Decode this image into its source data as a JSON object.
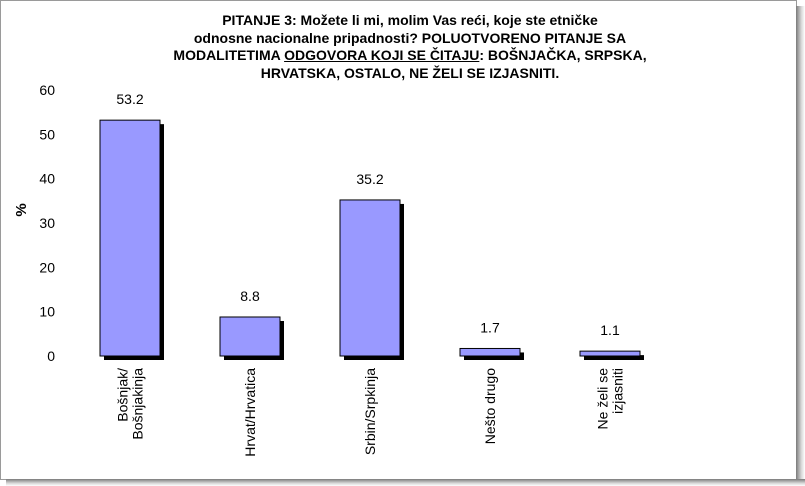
{
  "chart_data": {
    "type": "bar",
    "title_parts": [
      {
        "text": "PITANJE 3: Možete li mi, molim Vas reći, koje ste etničke",
        "u": false,
        "br": true
      },
      {
        "text": "odnosne nacionalne pripadnosti? POLUOTVORENO PITANJE SA",
        "u": false,
        "br": true
      },
      {
        "text": "MODALITETIMA ",
        "u": false,
        "br": false
      },
      {
        "text": "ODGOVORA KOJI SE ČITAJU",
        "u": true,
        "br": false
      },
      {
        "text": ": BOŠNJAČKA, SRPSKA,",
        "u": false,
        "br": true
      },
      {
        "text": "HRVATSKA, OSTALO, NE ŽELI SE IZJASNITI.",
        "u": false,
        "br": false
      }
    ],
    "ylabel": "%",
    "ylim": [
      0,
      60
    ],
    "yticks": [
      0,
      10,
      20,
      30,
      40,
      50,
      60
    ],
    "categories": [
      [
        "Bošnjak/",
        "Bošnjakinja"
      ],
      [
        "Hrvat/Hrvatica"
      ],
      [
        "Srbin/Srpkinja"
      ],
      [
        "Nešto drugo"
      ],
      [
        "Ne želi se",
        "izjasniti"
      ]
    ],
    "values": [
      53.2,
      8.8,
      35.2,
      1.7,
      1.1
    ],
    "value_labels": [
      "53.2",
      "8.8",
      "35.2",
      "1.7",
      "1.1"
    ],
    "bar_color": "#9999ff",
    "bar_shadow_color": "#000000",
    "grid": false,
    "legend": "none"
  }
}
